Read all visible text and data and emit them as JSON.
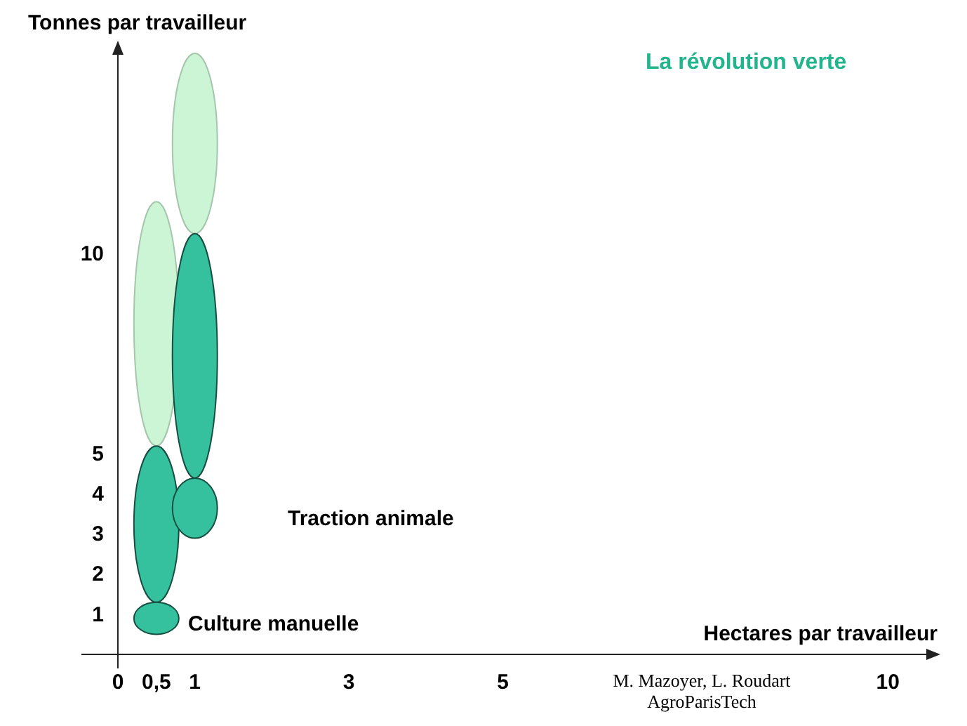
{
  "chart_data": {
    "type": "bar",
    "title": "La révolution verte",
    "xlabel": "Hectares par travailleur",
    "ylabel": "Tonnes par travailleur",
    "xlim": [
      0,
      10.5
    ],
    "ylim": [
      0,
      15
    ],
    "xticks": [
      0,
      {
        "value": 0.5,
        "label": "0,5"
      },
      1,
      3,
      5,
      10
    ],
    "yticks": [
      1,
      2,
      3,
      4,
      5,
      10
    ],
    "x": [
      0.5,
      1
    ],
    "series": [
      {
        "color": "#ccf5d6",
        "base": [
          5.2,
          10.5
        ],
        "values": [
          6.1,
          4.5
        ]
      },
      {
        "color": "#35c19e",
        "base": [
          1.3,
          2.9
        ],
        "values": [
          3.9,
          1.5
        ]
      },
      {
        "color": "#35c19e",
        "base": [
          0.5,
          4.4
        ],
        "values": [
          0.8,
          6.1
        ]
      }
    ],
    "annotations": [
      "Culture manuelle",
      "Traction animale",
      "M. Mazoyer, L. Roudart\nAgroParisTech"
    ]
  }
}
